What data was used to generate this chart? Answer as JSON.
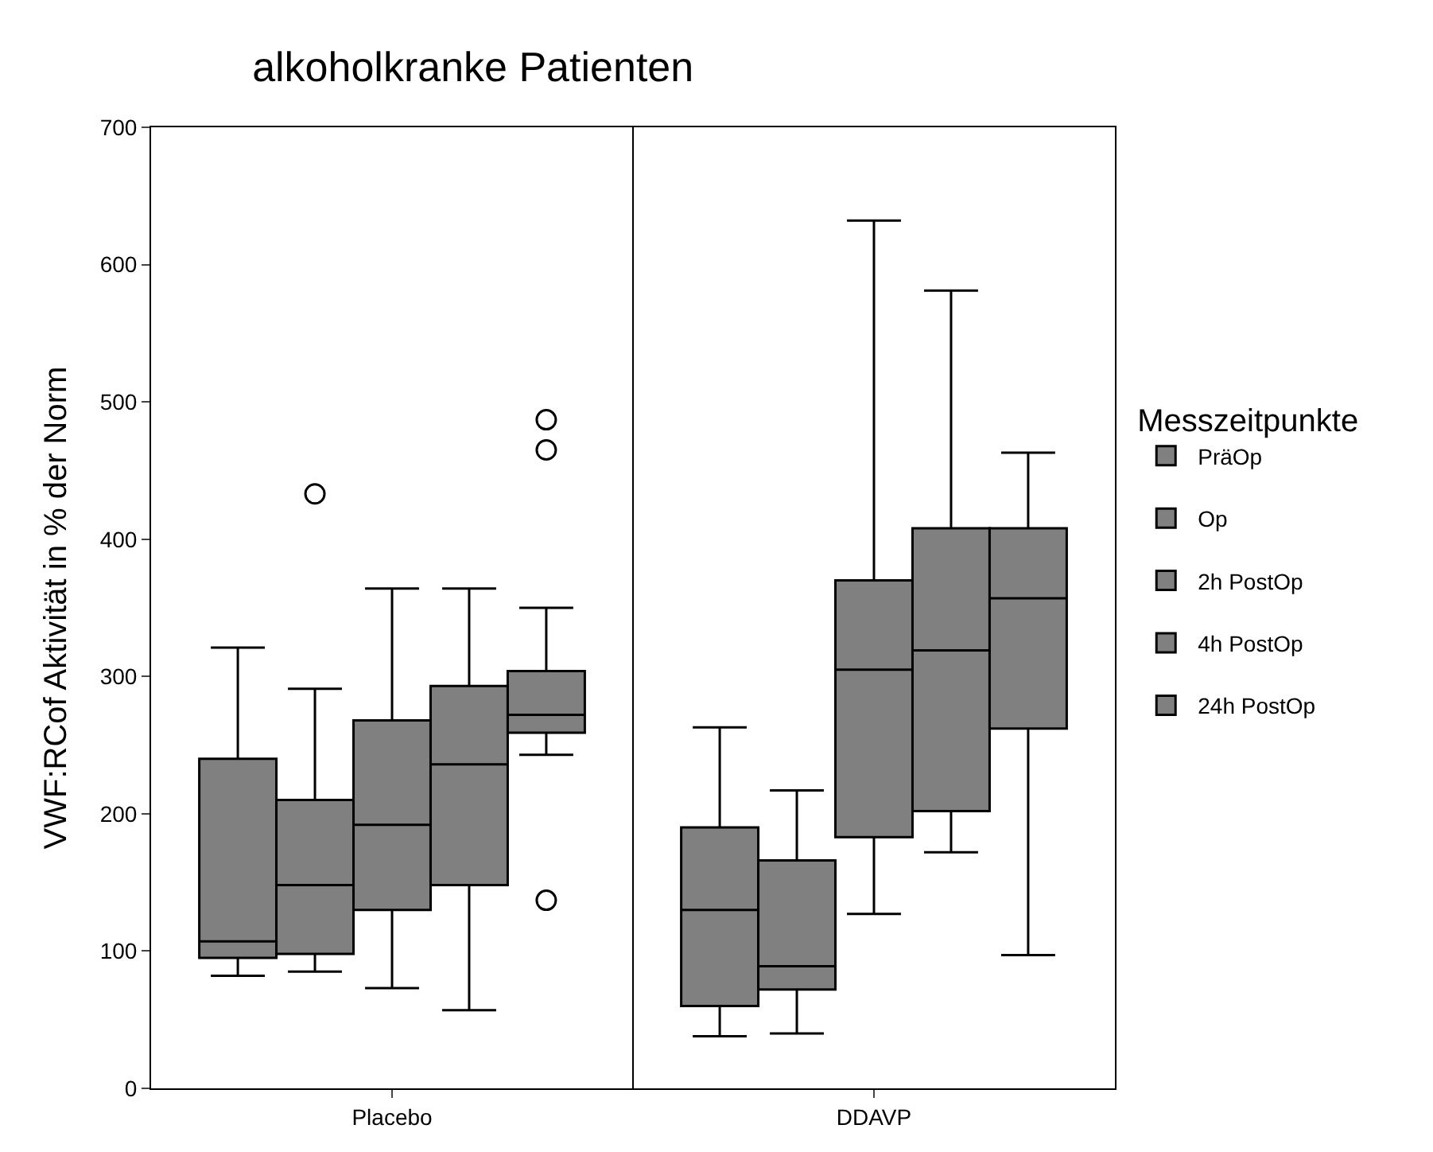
{
  "chart_data": {
    "type": "box",
    "title": "alkoholkranke Patienten",
    "ylabel": "VWF:RCof Aktivität in % der Norm",
    "legend_title": "Messzeitpunkte",
    "categories": [
      "Placebo",
      "DDAVP"
    ],
    "ylim": [
      0,
      700
    ],
    "yticks": [
      0,
      100,
      200,
      300,
      400,
      500,
      600,
      700
    ],
    "legend": "right",
    "series": [
      {
        "name": "PräOp",
        "color": "#808080",
        "boxes": [
          {
            "low": 82,
            "q1": 95,
            "median": 107,
            "q3": 240,
            "high": 321
          },
          {
            "low": 38,
            "q1": 60,
            "median": 130,
            "q3": 190,
            "high": 263
          }
        ]
      },
      {
        "name": "Op",
        "color": "#808080",
        "boxes": [
          {
            "low": 85,
            "q1": 98,
            "median": 148,
            "q3": 210,
            "high": 291,
            "outliers": [
              433
            ]
          },
          {
            "low": 40,
            "q1": 72,
            "median": 89,
            "q3": 166,
            "high": 217
          }
        ]
      },
      {
        "name": "2h PostOp",
        "color": "#808080",
        "boxes": [
          {
            "low": 73,
            "q1": 130,
            "median": 192,
            "q3": 268,
            "high": 364
          },
          {
            "low": 127,
            "q1": 183,
            "median": 305,
            "q3": 370,
            "high": 632
          }
        ]
      },
      {
        "name": "4h PostOp",
        "color": "#808080",
        "boxes": [
          {
            "low": 57,
            "q1": 148,
            "median": 236,
            "q3": 293,
            "high": 364
          },
          {
            "low": 172,
            "q1": 202,
            "median": 319,
            "q3": 408,
            "high": 581
          }
        ]
      },
      {
        "name": "24h PostOp",
        "color": "#808080",
        "boxes": [
          {
            "low": 243,
            "q1": 259,
            "median": 272,
            "q3": 304,
            "high": 350,
            "outliers": [
              137,
              465,
              487
            ]
          },
          {
            "low": 97,
            "q1": 262,
            "median": 357,
            "q3": 408,
            "high": 463
          }
        ]
      }
    ]
  }
}
